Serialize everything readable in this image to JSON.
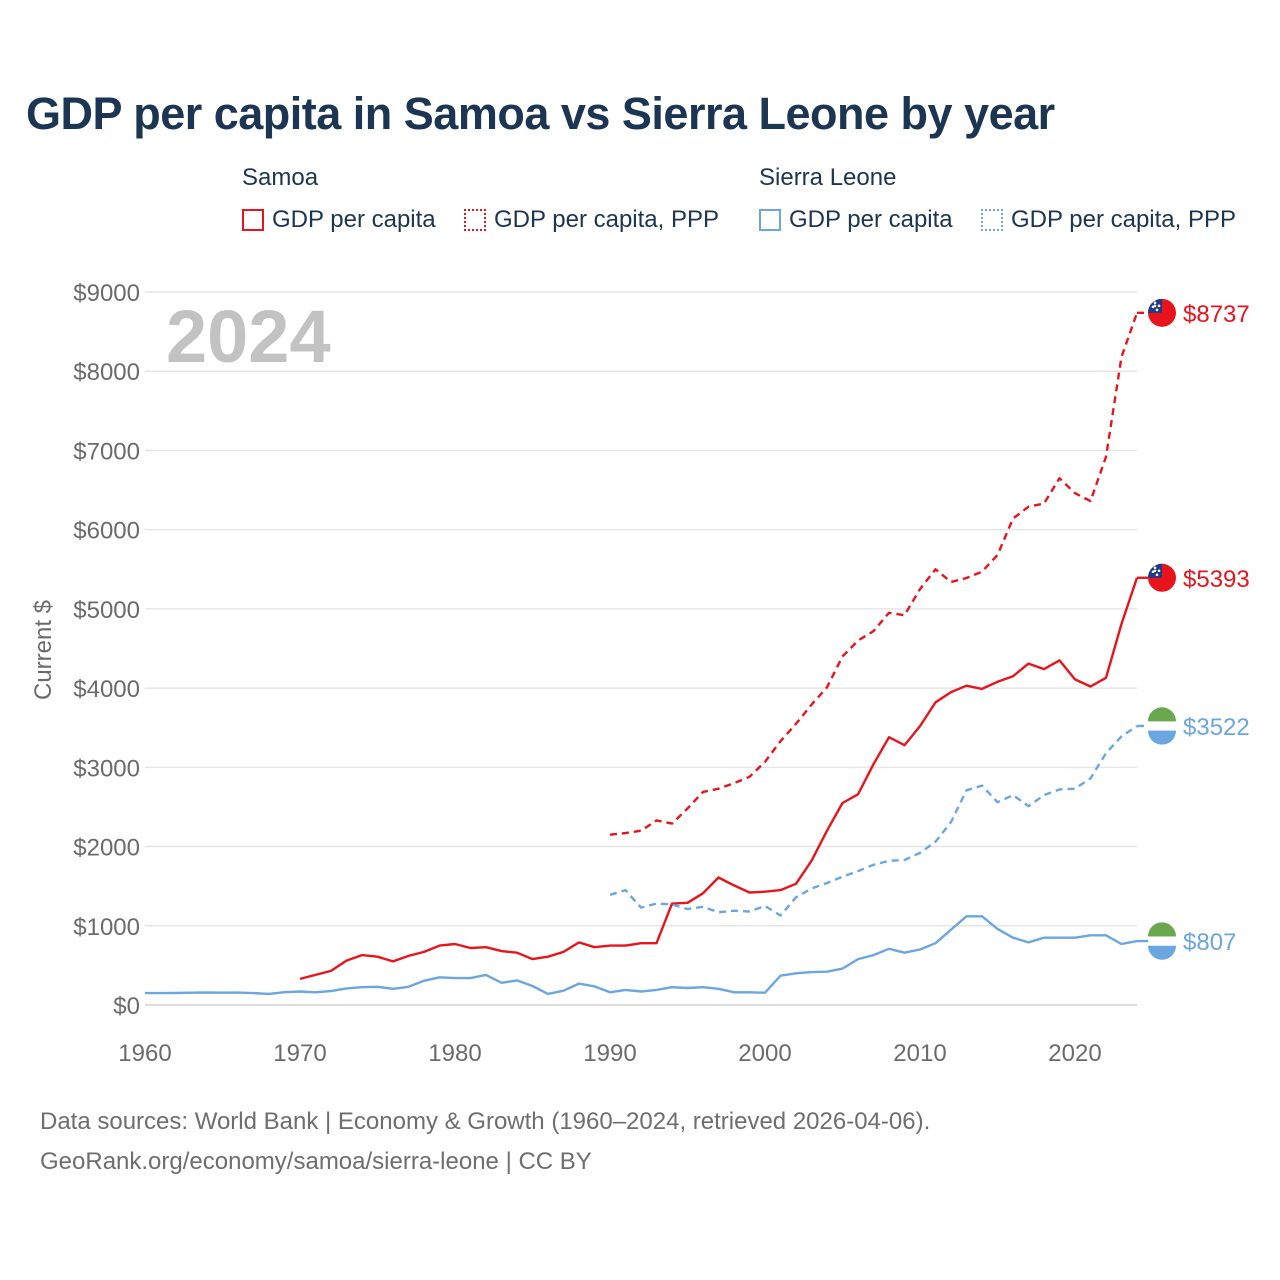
{
  "title": "GDP per capita in Samoa vs Sierra Leone by year",
  "legend": {
    "groups": [
      {
        "name": "Samoa",
        "items": [
          {
            "label": "GDP per capita",
            "style": "solid",
            "color": "#e8141b"
          },
          {
            "label": "GDP per capita, PPP",
            "style": "dotted",
            "color": "#e8141b"
          }
        ]
      },
      {
        "name": "Sierra Leone",
        "items": [
          {
            "label": "GDP per capita",
            "style": "solid",
            "color": "#6aa6e0"
          },
          {
            "label": "GDP per capita, PPP",
            "style": "dotted",
            "color": "#6aa6e0"
          }
        ]
      }
    ]
  },
  "footer": {
    "line1": "Data sources: World Bank | Economy & Growth (1960–2024, retrieved 2026-04-06).",
    "line2": "GeoRank.org/economy/samoa/sierra-leone | CC BY"
  },
  "colors": {
    "samoa": "#e8141b",
    "sierra_leone": "#6aa6e0",
    "grid": "#e6e6e6",
    "axis_text": "#6b6b6b",
    "watermark": "#c2c2c2"
  },
  "chart_data": {
    "type": "line",
    "title": "GDP per capita in Samoa vs Sierra Leone by year",
    "year_watermark": "2024",
    "xlabel": "",
    "ylabel": "Current $",
    "xlim": [
      1960,
      2024
    ],
    "ylim": [
      0,
      9000
    ],
    "x_ticks": [
      1960,
      1970,
      1980,
      1990,
      2000,
      2010,
      2020
    ],
    "y_ticks": [
      0,
      1000,
      2000,
      3000,
      4000,
      5000,
      6000,
      7000,
      8000,
      9000
    ],
    "y_tick_labels": [
      "$0",
      "$1000",
      "$2000",
      "$3000",
      "$4000",
      "$5000",
      "$6000",
      "$7000",
      "$8000",
      "$9000"
    ],
    "series": [
      {
        "name": "Samoa GDP per capita",
        "country": "samoa",
        "style": "solid",
        "color": "#e8141b",
        "end_label": "$5393",
        "x": [
          1970,
          1971,
          1972,
          1973,
          1974,
          1975,
          1976,
          1977,
          1978,
          1979,
          1980,
          1981,
          1982,
          1983,
          1984,
          1985,
          1986,
          1987,
          1988,
          1989,
          1990,
          1991,
          1992,
          1993,
          1994,
          1995,
          1996,
          1997,
          1998,
          1999,
          2000,
          2001,
          2002,
          2003,
          2004,
          2005,
          2006,
          2007,
          2008,
          2009,
          2010,
          2011,
          2012,
          2013,
          2014,
          2015,
          2016,
          2017,
          2018,
          2019,
          2020,
          2021,
          2022,
          2023,
          2024
        ],
        "values": [
          330,
          380,
          430,
          560,
          630,
          610,
          550,
          620,
          670,
          750,
          770,
          720,
          730,
          680,
          660,
          580,
          610,
          670,
          790,
          730,
          750,
          750,
          780,
          780,
          1280,
          1290,
          1410,
          1610,
          1510,
          1420,
          1430,
          1450,
          1530,
          1820,
          2200,
          2550,
          2660,
          3040,
          3380,
          3280,
          3520,
          3820,
          3950,
          4030,
          3990,
          4080,
          4150,
          4310,
          4240,
          4350,
          4110,
          4020,
          4130,
          4810,
          5393
        ]
      },
      {
        "name": "Samoa GDP per capita, PPP",
        "country": "samoa",
        "style": "dashed",
        "color": "#e8141b",
        "end_label": "$8737",
        "x": [
          1990,
          1991,
          1992,
          1993,
          1994,
          1995,
          1996,
          1997,
          1998,
          1999,
          2000,
          2001,
          2002,
          2003,
          2004,
          2005,
          2006,
          2007,
          2008,
          2009,
          2010,
          2011,
          2012,
          2013,
          2014,
          2015,
          2016,
          2017,
          2018,
          2019,
          2020,
          2021,
          2022,
          2023,
          2024
        ],
        "values": [
          2150,
          2170,
          2200,
          2330,
          2290,
          2480,
          2690,
          2730,
          2800,
          2880,
          3070,
          3330,
          3550,
          3790,
          4010,
          4400,
          4600,
          4720,
          4950,
          4920,
          5250,
          5500,
          5340,
          5390,
          5470,
          5680,
          6140,
          6290,
          6330,
          6650,
          6460,
          6360,
          6920,
          8180,
          8737
        ]
      },
      {
        "name": "Sierra Leone GDP per capita",
        "country": "sierra_leone",
        "style": "solid",
        "color": "#6aa6e0",
        "end_label": "$807",
        "x": [
          1960,
          1961,
          1962,
          1963,
          1964,
          1965,
          1966,
          1967,
          1968,
          1969,
          1970,
          1971,
          1972,
          1973,
          1974,
          1975,
          1976,
          1977,
          1978,
          1979,
          1980,
          1981,
          1982,
          1983,
          1984,
          1985,
          1986,
          1987,
          1988,
          1989,
          1990,
          1991,
          1992,
          1993,
          1994,
          1995,
          1996,
          1997,
          1998,
          1999,
          2000,
          2001,
          2002,
          2003,
          2004,
          2005,
          2006,
          2007,
          2008,
          2009,
          2010,
          2011,
          2012,
          2013,
          2014,
          2015,
          2016,
          2017,
          2018,
          2019,
          2020,
          2021,
          2022,
          2023,
          2024
        ],
        "values": [
          150,
          150,
          152,
          155,
          158,
          155,
          157,
          150,
          140,
          162,
          170,
          160,
          175,
          210,
          225,
          230,
          205,
          230,
          305,
          350,
          340,
          340,
          380,
          280,
          310,
          240,
          140,
          180,
          270,
          235,
          160,
          190,
          170,
          190,
          225,
          215,
          225,
          205,
          160,
          160,
          155,
          370,
          400,
          415,
          420,
          460,
          580,
          630,
          710,
          660,
          700,
          780,
          950,
          1120,
          1120,
          960,
          850,
          790,
          850,
          850,
          850,
          880,
          880,
          770,
          807
        ]
      },
      {
        "name": "Sierra Leone GDP per capita, PPP",
        "country": "sierra_leone",
        "style": "dashed",
        "color": "#6aa6e0",
        "end_label": "$3522",
        "x": [
          1990,
          1991,
          1992,
          1993,
          1994,
          1995,
          1996,
          1997,
          1998,
          1999,
          2000,
          2001,
          2002,
          2003,
          2004,
          2005,
          2006,
          2007,
          2008,
          2009,
          2010,
          2011,
          2012,
          2013,
          2014,
          2015,
          2016,
          2017,
          2018,
          2019,
          2020,
          2021,
          2022,
          2023,
          2024
        ],
        "values": [
          1390,
          1450,
          1230,
          1280,
          1270,
          1210,
          1240,
          1170,
          1190,
          1180,
          1250,
          1130,
          1360,
          1470,
          1540,
          1620,
          1690,
          1770,
          1820,
          1830,
          1920,
          2060,
          2310,
          2710,
          2770,
          2560,
          2650,
          2510,
          2650,
          2720,
          2730,
          2860,
          3180,
          3390,
          3522
        ]
      }
    ]
  }
}
